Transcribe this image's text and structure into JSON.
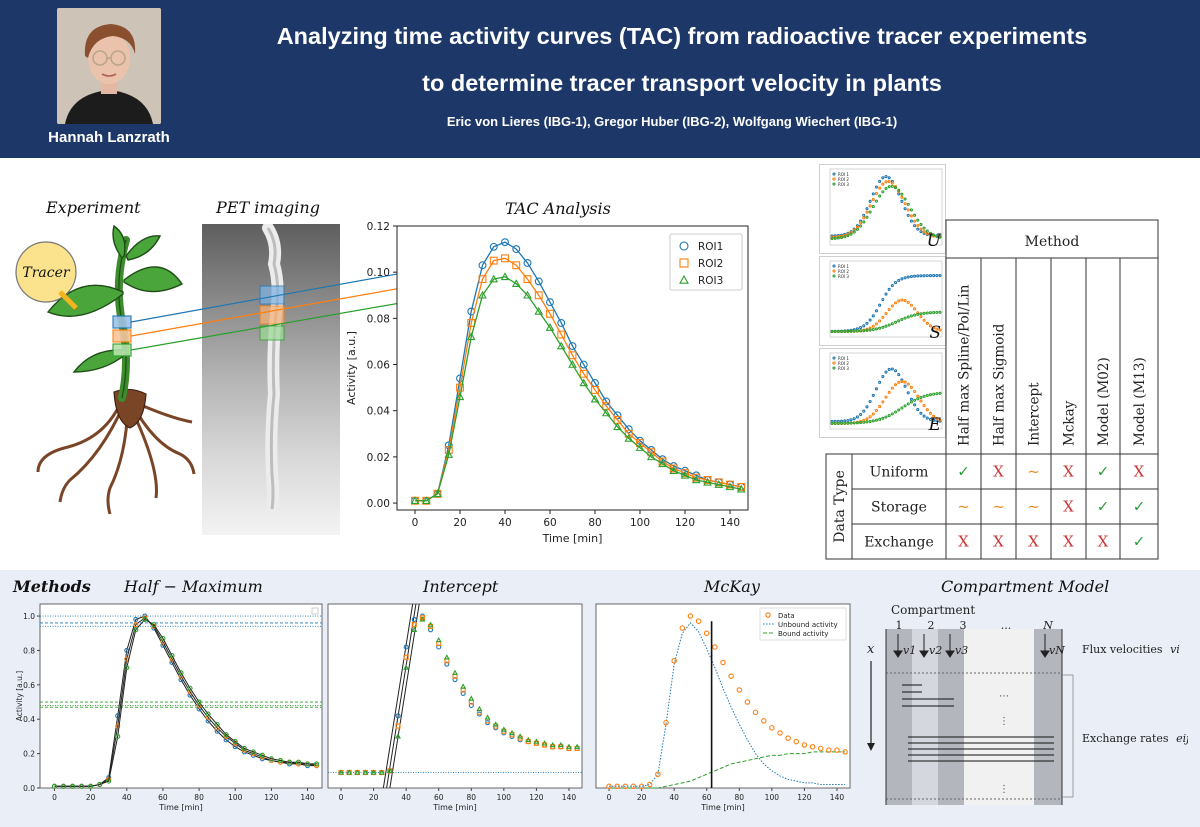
{
  "header": {
    "presenter_name": "Hannah Lanzrath",
    "title_line1": "Analyzing time activity curves (TAC) from radioactive tracer experiments",
    "title_line2": "to determine tracer transport velocity in plants",
    "authors": "Eric von Lieres (IBG-1), Gregor Huber (IBG-2), Wolfgang Wiechert (IBG-1)",
    "colors": {
      "background": "#1d3868",
      "text": "#ffffff"
    }
  },
  "sections": {
    "experiment": "Experiment",
    "pet_imaging": "PET imaging",
    "tac_analysis": "TAC Analysis",
    "tracer_label": "Tracer"
  },
  "chart_data": [
    {
      "type": "line",
      "xlabel": "Time [min]",
      "ylabel": "Activity [a.u.]",
      "xlim": [
        -8,
        148
      ],
      "ylim": [
        -0.003,
        0.12
      ],
      "xticks": [
        0,
        20,
        40,
        60,
        80,
        100,
        120,
        140
      ],
      "yticks": [
        0.0,
        0.02,
        0.04,
        0.06,
        0.08,
        0.1,
        0.12
      ],
      "legend": "top-right",
      "x": [
        0,
        5,
        10,
        15,
        20,
        25,
        30,
        35,
        40,
        45,
        50,
        55,
        60,
        65,
        70,
        75,
        80,
        85,
        90,
        95,
        100,
        105,
        110,
        115,
        120,
        125,
        130,
        135,
        140,
        145
      ],
      "series": [
        {
          "name": "ROI1",
          "marker": "circle",
          "color": "#1f77b4",
          "values": [
            0.001,
            0.001,
            0.004,
            0.025,
            0.054,
            0.083,
            0.103,
            0.111,
            0.113,
            0.11,
            0.104,
            0.096,
            0.087,
            0.078,
            0.068,
            0.06,
            0.052,
            0.044,
            0.038,
            0.032,
            0.027,
            0.023,
            0.019,
            0.016,
            0.014,
            0.012,
            0.01,
            0.009,
            0.008,
            0.007
          ]
        },
        {
          "name": "ROI2",
          "marker": "square",
          "color": "#ff7f0e",
          "values": [
            0.001,
            0.001,
            0.004,
            0.023,
            0.05,
            0.078,
            0.097,
            0.105,
            0.106,
            0.103,
            0.097,
            0.09,
            0.082,
            0.073,
            0.064,
            0.056,
            0.049,
            0.042,
            0.036,
            0.03,
            0.026,
            0.022,
            0.018,
            0.015,
            0.013,
            0.011,
            0.01,
            0.009,
            0.008,
            0.007
          ]
        },
        {
          "name": "ROI3",
          "marker": "triangle",
          "color": "#2ca02c",
          "values": [
            0.001,
            0.001,
            0.004,
            0.021,
            0.046,
            0.072,
            0.09,
            0.097,
            0.098,
            0.095,
            0.09,
            0.083,
            0.076,
            0.068,
            0.06,
            0.052,
            0.045,
            0.039,
            0.033,
            0.028,
            0.024,
            0.02,
            0.017,
            0.014,
            0.012,
            0.01,
            0.009,
            0.008,
            0.007,
            0.006
          ]
        }
      ]
    },
    {
      "type": "line",
      "title": "Half − Maximum",
      "xlabel": "Time [min]",
      "ylabel": "Activity [a.u.]",
      "xlim": [
        -8,
        148
      ],
      "ylim": [
        0,
        1.07
      ],
      "xticks": [
        0,
        20,
        40,
        60,
        80,
        100,
        120,
        140
      ],
      "yticks": [
        0.0,
        0.2,
        0.4,
        0.6,
        0.8,
        1.0
      ],
      "x": [
        0,
        5,
        10,
        15,
        20,
        25,
        30,
        35,
        40,
        45,
        50,
        55,
        60,
        65,
        70,
        75,
        80,
        85,
        90,
        95,
        100,
        105,
        110,
        115,
        120,
        125,
        130,
        135,
        140,
        145
      ],
      "series": [
        {
          "name": "ROI1",
          "color": "#1f77b4",
          "values": [
            0.01,
            0.01,
            0.01,
            0.01,
            0.01,
            0.02,
            0.06,
            0.42,
            0.8,
            0.98,
            1.0,
            0.93,
            0.83,
            0.73,
            0.63,
            0.54,
            0.46,
            0.39,
            0.33,
            0.28,
            0.24,
            0.21,
            0.19,
            0.17,
            0.16,
            0.15,
            0.14,
            0.14,
            0.13,
            0.13
          ]
        },
        {
          "name": "ROI2",
          "color": "#ff7f0e",
          "values": [
            0.01,
            0.01,
            0.01,
            0.01,
            0.01,
            0.02,
            0.05,
            0.36,
            0.75,
            0.95,
            0.99,
            0.94,
            0.85,
            0.75,
            0.65,
            0.56,
            0.48,
            0.41,
            0.35,
            0.3,
            0.26,
            0.22,
            0.2,
            0.18,
            0.16,
            0.15,
            0.15,
            0.14,
            0.14,
            0.13
          ]
        },
        {
          "name": "ROI3",
          "color": "#2ca02c",
          "values": [
            0.01,
            0.01,
            0.01,
            0.01,
            0.01,
            0.02,
            0.04,
            0.3,
            0.7,
            0.92,
            0.98,
            0.95,
            0.87,
            0.77,
            0.67,
            0.58,
            0.5,
            0.43,
            0.37,
            0.31,
            0.27,
            0.23,
            0.21,
            0.19,
            0.17,
            0.16,
            0.15,
            0.15,
            0.14,
            0.14
          ]
        }
      ],
      "reference_levels": [
        1.0,
        0.96,
        0.94,
        0.5,
        0.48,
        0.47
      ]
    },
    {
      "type": "line",
      "title": "Intercept",
      "xlabel": "Time [min]",
      "xlim": [
        -8,
        148
      ],
      "ylim": [
        0,
        1.07
      ],
      "xticks": [
        0,
        20,
        40,
        60,
        80,
        100,
        120,
        140
      ],
      "x": [
        0,
        5,
        10,
        15,
        20,
        25,
        30,
        35,
        40,
        45,
        50,
        55,
        60,
        65,
        70,
        75,
        80,
        85,
        90,
        95,
        100,
        105,
        110,
        115,
        120,
        125,
        130,
        135,
        140,
        145
      ],
      "series": [
        {
          "name": "ROI1",
          "color": "#1f77b4",
          "values": [
            0.09,
            0.09,
            0.09,
            0.09,
            0.09,
            0.09,
            0.1,
            0.42,
            0.82,
            0.98,
            1.0,
            0.92,
            0.82,
            0.72,
            0.63,
            0.55,
            0.48,
            0.43,
            0.38,
            0.35,
            0.32,
            0.3,
            0.28,
            0.27,
            0.26,
            0.25,
            0.24,
            0.24,
            0.23,
            0.23
          ]
        },
        {
          "name": "ROI2",
          "color": "#ff7f0e",
          "values": [
            0.09,
            0.09,
            0.09,
            0.09,
            0.09,
            0.09,
            0.1,
            0.36,
            0.76,
            0.95,
            0.99,
            0.94,
            0.84,
            0.74,
            0.65,
            0.57,
            0.5,
            0.44,
            0.39,
            0.36,
            0.33,
            0.31,
            0.29,
            0.27,
            0.26,
            0.25,
            0.24,
            0.24,
            0.23,
            0.23
          ]
        },
        {
          "name": "ROI3",
          "color": "#2ca02c",
          "values": [
            0.09,
            0.09,
            0.09,
            0.09,
            0.09,
            0.09,
            0.1,
            0.3,
            0.7,
            0.92,
            0.98,
            0.95,
            0.86,
            0.76,
            0.67,
            0.59,
            0.52,
            0.46,
            0.41,
            0.37,
            0.34,
            0.32,
            0.3,
            0.28,
            0.27,
            0.26,
            0.25,
            0.25,
            0.24,
            0.24
          ]
        }
      ],
      "baseline": 0.09
    },
    {
      "type": "line",
      "title": "McKay",
      "xlabel": "Time [min]",
      "xlim": [
        -8,
        148
      ],
      "ylim": [
        0,
        1.07
      ],
      "xticks": [
        0,
        20,
        40,
        60,
        80,
        100,
        120,
        140
      ],
      "legend": "top-right",
      "x": [
        0,
        5,
        10,
        15,
        20,
        25,
        30,
        35,
        40,
        45,
        50,
        55,
        60,
        65,
        70,
        75,
        80,
        85,
        90,
        95,
        100,
        105,
        110,
        115,
        120,
        125,
        130,
        135,
        140,
        145
      ],
      "series": [
        {
          "name": "Data",
          "style": "circles",
          "color": "#ff7f0e",
          "values": [
            0.01,
            0.01,
            0.01,
            0.01,
            0.01,
            0.02,
            0.08,
            0.38,
            0.74,
            0.93,
            1.0,
            0.97,
            0.9,
            0.82,
            0.73,
            0.65,
            0.57,
            0.5,
            0.44,
            0.39,
            0.35,
            0.32,
            0.29,
            0.27,
            0.25,
            0.24,
            0.23,
            0.22,
            0.22,
            0.21
          ]
        },
        {
          "name": "Unbound activity",
          "style": "dotted",
          "color": "#1f77b4",
          "values": [
            0.01,
            0.01,
            0.01,
            0.01,
            0.01,
            0.02,
            0.08,
            0.37,
            0.72,
            0.9,
            0.96,
            0.91,
            0.81,
            0.7,
            0.58,
            0.47,
            0.37,
            0.28,
            0.2,
            0.14,
            0.1,
            0.07,
            0.05,
            0.04,
            0.03,
            0.03,
            0.02,
            0.02,
            0.02,
            0.02
          ]
        },
        {
          "name": "Bound activity",
          "style": "dashed",
          "color": "#2ca02c",
          "values": [
            0.0,
            0.0,
            0.0,
            0.0,
            0.0,
            0.0,
            0.0,
            0.01,
            0.02,
            0.03,
            0.04,
            0.06,
            0.08,
            0.1,
            0.12,
            0.14,
            0.15,
            0.16,
            0.17,
            0.18,
            0.19,
            0.19,
            0.2,
            0.2,
            0.2,
            0.21,
            0.21,
            0.21,
            0.21,
            0.21
          ]
        }
      ],
      "vertical_line_x": 63
    }
  ],
  "thumbnails": {
    "letters": [
      "U",
      "S",
      "E"
    ],
    "legend": [
      "ROI 1",
      "ROI 2",
      "ROI 3"
    ],
    "colors": [
      "#1f77b4",
      "#ff7f0e",
      "#2ca02c"
    ]
  },
  "method_table": {
    "method_header": "Method",
    "data_type_header": "Data Type",
    "methods": [
      "Half max Spline/Pol/Lin",
      "Half max Sigmoid",
      "Intercept",
      "Mckay",
      "Model (M02)",
      "Model (M13)"
    ],
    "rows": [
      {
        "label": "Uniform",
        "cells": [
          "✓",
          "X",
          "~",
          "X",
          "✓",
          "X"
        ]
      },
      {
        "label": "Storage",
        "cells": [
          "~",
          "~",
          "~",
          "X",
          "✓",
          "✓"
        ]
      },
      {
        "label": "Exchange",
        "cells": [
          "X",
          "X",
          "X",
          "X",
          "X",
          "✓"
        ]
      }
    ],
    "colors": {
      "check": "#2e9e3e",
      "cross": "#cc3333",
      "tilde": "#f08a1c"
    }
  },
  "methods_section": {
    "title": "Methods",
    "compartment_title": "Compartment Model",
    "compartment_label": "Compartment",
    "compartment_numbers": [
      "1",
      "2",
      "3",
      "...",
      "N"
    ],
    "velocities": [
      "v1",
      "v2",
      "v3",
      "vN"
    ],
    "axis_label": "x",
    "flux_label": "Flux velocities",
    "flux_symbol": "vi",
    "exchange_label": "Exchange rates",
    "exchange_symbol": "eij",
    "band_color": "#e9eef7"
  }
}
